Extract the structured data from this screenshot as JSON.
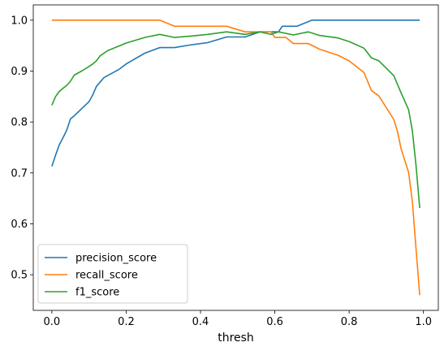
{
  "chart_data": {
    "type": "line",
    "title": "",
    "xlabel": "thresh",
    "ylabel": "",
    "xlim": [
      -0.05,
      1.04
    ],
    "ylim": [
      0.43,
      1.03
    ],
    "x_ticks": [
      "0.0",
      "0.2",
      "0.4",
      "0.6",
      "0.8",
      "1.0"
    ],
    "y_ticks": [
      "0.5",
      "0.6",
      "0.7",
      "0.8",
      "0.9",
      "1.0"
    ],
    "grid": false,
    "legend_position": "lower-left",
    "series": [
      {
        "name": "precision_score",
        "color": "#1f77b4",
        "points": [
          [
            0.0,
            0.713
          ],
          [
            0.01,
            0.735
          ],
          [
            0.02,
            0.755
          ],
          [
            0.03,
            0.769
          ],
          [
            0.04,
            0.784
          ],
          [
            0.05,
            0.806
          ],
          [
            0.06,
            0.812
          ],
          [
            0.08,
            0.826
          ],
          [
            0.1,
            0.84
          ],
          [
            0.11,
            0.853
          ],
          [
            0.12,
            0.87
          ],
          [
            0.14,
            0.887
          ],
          [
            0.18,
            0.903
          ],
          [
            0.2,
            0.914
          ],
          [
            0.25,
            0.935
          ],
          [
            0.29,
            0.946
          ],
          [
            0.33,
            0.946
          ],
          [
            0.37,
            0.951
          ],
          [
            0.42,
            0.956
          ],
          [
            0.47,
            0.967
          ],
          [
            0.52,
            0.967
          ],
          [
            0.56,
            0.977
          ],
          [
            0.59,
            0.977
          ],
          [
            0.61,
            0.977
          ],
          [
            0.62,
            0.988
          ],
          [
            0.66,
            0.988
          ],
          [
            0.7,
            1.0
          ],
          [
            0.75,
            1.0
          ],
          [
            0.8,
            1.0
          ],
          [
            0.85,
            1.0
          ],
          [
            0.9,
            1.0
          ],
          [
            0.95,
            1.0
          ],
          [
            0.99,
            1.0
          ]
        ]
      },
      {
        "name": "recall_score",
        "color": "#ff7f0e",
        "points": [
          [
            0.0,
            1.0
          ],
          [
            0.1,
            1.0
          ],
          [
            0.2,
            1.0
          ],
          [
            0.29,
            1.0
          ],
          [
            0.33,
            0.988
          ],
          [
            0.4,
            0.988
          ],
          [
            0.47,
            0.988
          ],
          [
            0.52,
            0.977
          ],
          [
            0.56,
            0.977
          ],
          [
            0.59,
            0.977
          ],
          [
            0.6,
            0.966
          ],
          [
            0.63,
            0.966
          ],
          [
            0.65,
            0.954
          ],
          [
            0.69,
            0.954
          ],
          [
            0.72,
            0.943
          ],
          [
            0.77,
            0.931
          ],
          [
            0.8,
            0.92
          ],
          [
            0.84,
            0.897
          ],
          [
            0.86,
            0.862
          ],
          [
            0.88,
            0.851
          ],
          [
            0.92,
            0.805
          ],
          [
            0.93,
            0.782
          ],
          [
            0.94,
            0.747
          ],
          [
            0.96,
            0.701
          ],
          [
            0.97,
            0.644
          ],
          [
            0.98,
            0.552
          ],
          [
            0.99,
            0.46
          ]
        ]
      },
      {
        "name": "f1_score",
        "color": "#2ca02c",
        "points": [
          [
            0.0,
            0.833
          ],
          [
            0.01,
            0.85
          ],
          [
            0.02,
            0.86
          ],
          [
            0.04,
            0.872
          ],
          [
            0.05,
            0.88
          ],
          [
            0.06,
            0.892
          ],
          [
            0.08,
            0.9
          ],
          [
            0.1,
            0.909
          ],
          [
            0.11,
            0.914
          ],
          [
            0.12,
            0.92
          ],
          [
            0.13,
            0.93
          ],
          [
            0.15,
            0.94
          ],
          [
            0.2,
            0.955
          ],
          [
            0.25,
            0.966
          ],
          [
            0.29,
            0.972
          ],
          [
            0.33,
            0.966
          ],
          [
            0.38,
            0.969
          ],
          [
            0.42,
            0.972
          ],
          [
            0.47,
            0.977
          ],
          [
            0.52,
            0.972
          ],
          [
            0.56,
            0.977
          ],
          [
            0.59,
            0.972
          ],
          [
            0.61,
            0.977
          ],
          [
            0.65,
            0.971
          ],
          [
            0.69,
            0.977
          ],
          [
            0.72,
            0.97
          ],
          [
            0.77,
            0.965
          ],
          [
            0.8,
            0.958
          ],
          [
            0.84,
            0.945
          ],
          [
            0.86,
            0.926
          ],
          [
            0.88,
            0.92
          ],
          [
            0.92,
            0.891
          ],
          [
            0.94,
            0.857
          ],
          [
            0.96,
            0.824
          ],
          [
            0.97,
            0.783
          ],
          [
            0.98,
            0.715
          ],
          [
            0.99,
            0.631
          ]
        ]
      }
    ]
  }
}
